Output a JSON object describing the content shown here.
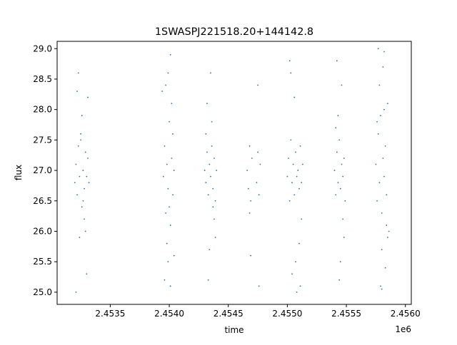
{
  "chart_data": {
    "type": "scatter",
    "title": "1SWASPJ221518.20+144142.8",
    "xlabel": "time",
    "ylabel": "flux",
    "x_offset_label": "1e6",
    "xlim": [
      2.45305,
      2.45605
    ],
    "ylim": [
      24.8,
      29.12
    ],
    "x_ticks": [
      2.4535,
      2.454,
      2.4545,
      2.455,
      2.4555,
      2.456
    ],
    "x_tick_labels": [
      "2.4535",
      "2.4540",
      "2.4545",
      "2.4550",
      "2.4555",
      "2.4560"
    ],
    "y_ticks": [
      25.0,
      25.5,
      26.0,
      26.5,
      27.0,
      27.5,
      28.0,
      28.5,
      29.0
    ],
    "y_tick_labels": [
      "25.0",
      "25.5",
      "26.0",
      "26.5",
      "27.0",
      "27.5",
      "28.0",
      "28.5",
      "29.0"
    ],
    "grid": false,
    "marker_color": "#1f77b4",
    "series": [
      {
        "x": [
          2.4532,
          2.45321,
          2.45322,
          2.45323,
          2.45324,
          2.45325,
          2.45326,
          2.45327,
          2.45328,
          2.45329,
          2.4533,
          2.45331,
          2.45332,
          2.45322,
          2.45324,
          2.45326,
          2.45328,
          2.4533,
          2.45323,
          2.45327,
          2.45325,
          2.45329,
          2.45331,
          2.45321,
          2.45395,
          2.45396,
          2.45397,
          2.45398,
          2.45399,
          2.454,
          2.45401,
          2.45402,
          2.45403,
          2.45404,
          2.45397,
          2.45399,
          2.45401,
          2.45398,
          2.454,
          2.45402,
          2.45396,
          2.45403,
          2.45399,
          2.45401,
          2.45394,
          2.45404,
          2.4543,
          2.45431,
          2.45432,
          2.45433,
          2.45434,
          2.45435,
          2.45436,
          2.45437,
          2.45438,
          2.45439,
          2.4544,
          2.45432,
          2.45434,
          2.45436,
          2.45438,
          2.45433,
          2.45435,
          2.45437,
          2.45431,
          2.45439,
          2.45466,
          2.45467,
          2.45468,
          2.45469,
          2.4547,
          2.45474,
          2.45475,
          2.45476,
          2.45477,
          2.45468,
          2.45475,
          2.45469,
          2.45476,
          2.455,
          2.45501,
          2.45502,
          2.45503,
          2.45504,
          2.45505,
          2.45506,
          2.45507,
          2.45508,
          2.45509,
          2.4551,
          2.45511,
          2.45512,
          2.45513,
          2.45502,
          2.45504,
          2.45506,
          2.45508,
          2.4551,
          2.45512,
          2.45503,
          2.45507,
          2.45511,
          2.4554,
          2.45541,
          2.45542,
          2.45543,
          2.45544,
          2.45545,
          2.45546,
          2.45547,
          2.45548,
          2.45549,
          2.45542,
          2.45544,
          2.45546,
          2.45548,
          2.45543,
          2.45545,
          2.45547,
          2.45541,
          2.45575,
          2.45576,
          2.45577,
          2.45578,
          2.45579,
          2.4558,
          2.45581,
          2.45582,
          2.45583,
          2.45584,
          2.45585,
          2.45586,
          2.45577,
          2.45579,
          2.45581,
          2.45583,
          2.45585,
          2.45578,
          2.4558,
          2.45582,
          2.45584,
          2.45576,
          2.4558,
          2.45582
        ],
        "y": [
          26.8,
          27.1,
          26.6,
          27.4,
          26.9,
          27.6,
          26.4,
          27.0,
          26.7,
          27.3,
          26.9,
          27.2,
          26.8,
          28.3,
          25.9,
          27.9,
          26.2,
          25.3,
          28.6,
          26.5,
          27.5,
          26.0,
          28.2,
          25.0,
          26.9,
          27.4,
          26.3,
          27.1,
          26.7,
          27.8,
          26.1,
          27.2,
          26.6,
          27.0,
          28.4,
          25.5,
          28.9,
          25.8,
          26.4,
          28.1,
          25.2,
          27.6,
          28.6,
          25.1,
          28.3,
          25.6,
          27.0,
          26.8,
          27.3,
          26.6,
          27.1,
          26.9,
          27.4,
          26.7,
          27.2,
          26.5,
          27.0,
          28.1,
          25.7,
          27.8,
          26.2,
          25.2,
          28.6,
          26.4,
          27.6,
          25.9,
          27.0,
          26.7,
          27.4,
          26.5,
          27.2,
          26.8,
          27.3,
          26.6,
          27.1,
          26.3,
          28.4,
          25.6,
          25.1,
          26.9,
          27.2,
          26.5,
          27.5,
          26.8,
          27.1,
          26.6,
          27.3,
          26.9,
          27.0,
          26.7,
          27.4,
          26.8,
          27.1,
          28.8,
          25.3,
          28.2,
          25.0,
          25.8,
          26.2,
          28.6,
          25.5,
          25.1,
          27.0,
          26.6,
          27.3,
          26.8,
          27.5,
          26.7,
          27.1,
          26.9,
          27.2,
          26.5,
          28.8,
          25.2,
          28.4,
          25.9,
          27.9,
          25.5,
          26.2,
          27.7,
          27.1,
          26.5,
          27.6,
          26.8,
          27.9,
          26.3,
          27.2,
          26.9,
          27.4,
          26.6,
          28.1,
          26.0,
          29.0,
          25.1,
          28.7,
          25.4,
          25.9,
          28.4,
          25.7,
          28.0,
          26.1,
          27.8,
          25.05,
          28.95
        ]
      }
    ]
  }
}
